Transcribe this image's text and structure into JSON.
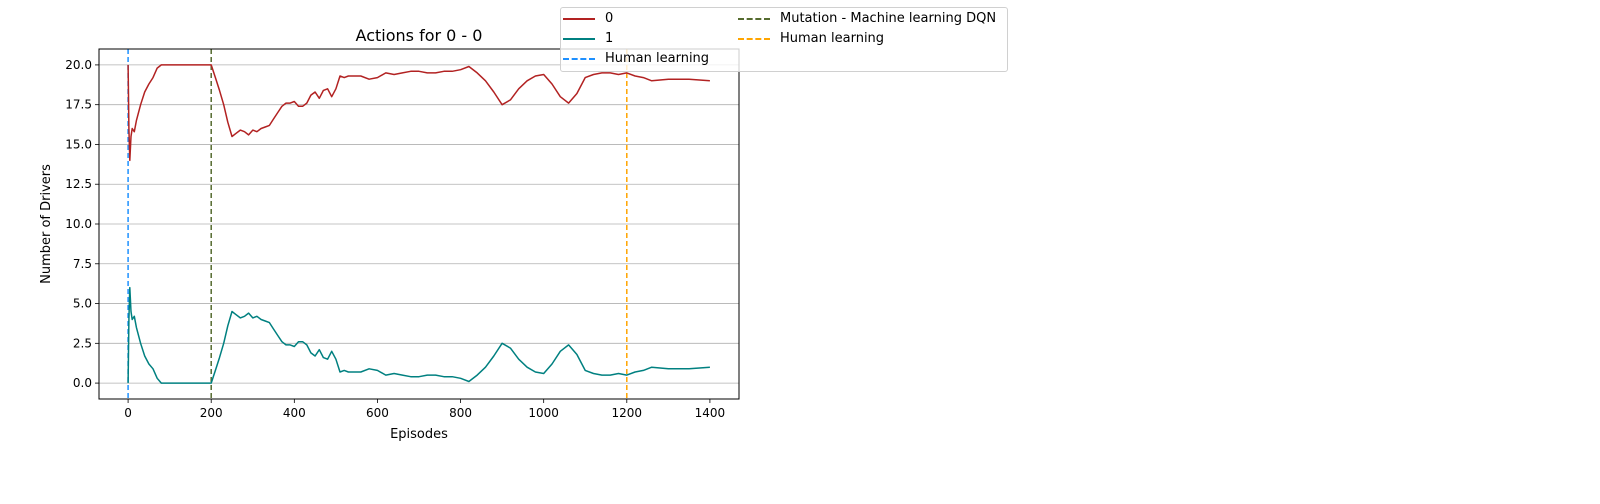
{
  "chart_data": {
    "type": "line",
    "title": "Actions for 0 - 0",
    "xlabel": "Episodes",
    "ylabel": "Number of Drivers",
    "xlim": [
      -70,
      1470
    ],
    "ylim": [
      -1,
      21
    ],
    "xticks": [
      "0",
      "200",
      "400",
      "600",
      "800",
      "1000",
      "1200",
      "1400"
    ],
    "yticks": [
      "0.0",
      "2.5",
      "5.0",
      "7.5",
      "10.0",
      "12.5",
      "15.0",
      "17.5",
      "20.0"
    ],
    "grid": "horizontal",
    "legend_position": "top-right",
    "series": [
      {
        "name": "0",
        "color": "#b22222",
        "x": [
          0,
          2,
          4,
          7,
          10,
          15,
          20,
          30,
          40,
          50,
          60,
          70,
          80,
          100,
          120,
          140,
          160,
          180,
          200,
          210,
          220,
          230,
          240,
          250,
          260,
          270,
          280,
          290,
          300,
          310,
          320,
          330,
          340,
          350,
          360,
          370,
          380,
          390,
          400,
          410,
          420,
          430,
          440,
          450,
          460,
          470,
          480,
          490,
          500,
          510,
          520,
          530,
          540,
          560,
          580,
          600,
          620,
          640,
          660,
          680,
          700,
          720,
          740,
          760,
          780,
          800,
          820,
          840,
          860,
          880,
          900,
          920,
          940,
          960,
          980,
          1000,
          1020,
          1040,
          1060,
          1080,
          1100,
          1120,
          1140,
          1160,
          1180,
          1200,
          1220,
          1240,
          1260,
          1300,
          1350,
          1400
        ],
        "values": [
          20,
          16,
          14,
          15.5,
          16,
          15.8,
          16.5,
          17.5,
          18.3,
          18.8,
          19.2,
          19.8,
          20,
          20,
          20,
          20,
          20,
          20,
          20,
          19.2,
          18.4,
          17.5,
          16.4,
          15.5,
          15.7,
          15.9,
          15.8,
          15.6,
          15.9,
          15.8,
          16.0,
          16.1,
          16.2,
          16.6,
          17.0,
          17.4,
          17.6,
          17.6,
          17.7,
          17.4,
          17.4,
          17.6,
          18.1,
          18.3,
          17.9,
          18.4,
          18.5,
          18.0,
          18.5,
          19.3,
          19.2,
          19.3,
          19.3,
          19.3,
          19.1,
          19.2,
          19.5,
          19.4,
          19.5,
          19.6,
          19.6,
          19.5,
          19.5,
          19.6,
          19.6,
          19.7,
          19.9,
          19.5,
          19.0,
          18.3,
          17.5,
          17.8,
          18.5,
          19.0,
          19.3,
          19.4,
          18.8,
          18.0,
          17.6,
          18.2,
          19.2,
          19.4,
          19.5,
          19.5,
          19.4,
          19.5,
          19.3,
          19.2,
          19.0,
          19.1,
          19.1,
          19.0
        ]
      },
      {
        "name": "1",
        "color": "#008080",
        "x": [
          0,
          2,
          4,
          7,
          10,
          15,
          20,
          30,
          40,
          50,
          60,
          70,
          80,
          100,
          120,
          140,
          160,
          180,
          200,
          210,
          220,
          230,
          240,
          250,
          260,
          270,
          280,
          290,
          300,
          310,
          320,
          330,
          340,
          350,
          360,
          370,
          380,
          390,
          400,
          410,
          420,
          430,
          440,
          450,
          460,
          470,
          480,
          490,
          500,
          510,
          520,
          530,
          540,
          560,
          580,
          600,
          620,
          640,
          660,
          680,
          700,
          720,
          740,
          760,
          780,
          800,
          820,
          840,
          860,
          880,
          900,
          920,
          940,
          960,
          980,
          1000,
          1020,
          1040,
          1060,
          1080,
          1100,
          1120,
          1140,
          1160,
          1180,
          1200,
          1220,
          1240,
          1260,
          1300,
          1350,
          1400
        ],
        "values": [
          0,
          4.0,
          6.0,
          4.5,
          4.0,
          4.2,
          3.5,
          2.5,
          1.7,
          1.2,
          0.9,
          0.3,
          0,
          0,
          0,
          0,
          0,
          0,
          0,
          0.8,
          1.6,
          2.5,
          3.6,
          4.5,
          4.3,
          4.1,
          4.2,
          4.4,
          4.1,
          4.2,
          4.0,
          3.9,
          3.8,
          3.4,
          3.0,
          2.6,
          2.4,
          2.4,
          2.3,
          2.6,
          2.6,
          2.4,
          1.9,
          1.7,
          2.1,
          1.6,
          1.5,
          2.0,
          1.5,
          0.7,
          0.8,
          0.7,
          0.7,
          0.7,
          0.9,
          0.8,
          0.5,
          0.6,
          0.5,
          0.4,
          0.4,
          0.5,
          0.5,
          0.4,
          0.4,
          0.3,
          0.1,
          0.5,
          1.0,
          1.7,
          2.5,
          2.2,
          1.5,
          1.0,
          0.7,
          0.6,
          1.2,
          2.0,
          2.4,
          1.8,
          0.8,
          0.6,
          0.5,
          0.5,
          0.6,
          0.5,
          0.7,
          0.8,
          1.0,
          0.9,
          0.9,
          1.0
        ]
      }
    ],
    "vlines": [
      {
        "name": "Human learning",
        "x": 0,
        "color": "#1e90ff"
      },
      {
        "name": "Mutation - Machine learning DQN",
        "x": 200,
        "color": "#556b2f"
      },
      {
        "name": "Human learning",
        "x": 1200,
        "color": "#ffa500"
      }
    ],
    "legend": [
      {
        "label": "0",
        "color": "#b22222",
        "style": "solid"
      },
      {
        "label": "1",
        "color": "#008080",
        "style": "solid"
      },
      {
        "label": "Human learning",
        "color": "#1e90ff",
        "style": "dashed"
      },
      {
        "label": "Mutation - Machine learning DQN",
        "color": "#556b2f",
        "style": "dashed"
      },
      {
        "label": "Human learning",
        "color": "#ffa500",
        "style": "dashed"
      }
    ]
  }
}
